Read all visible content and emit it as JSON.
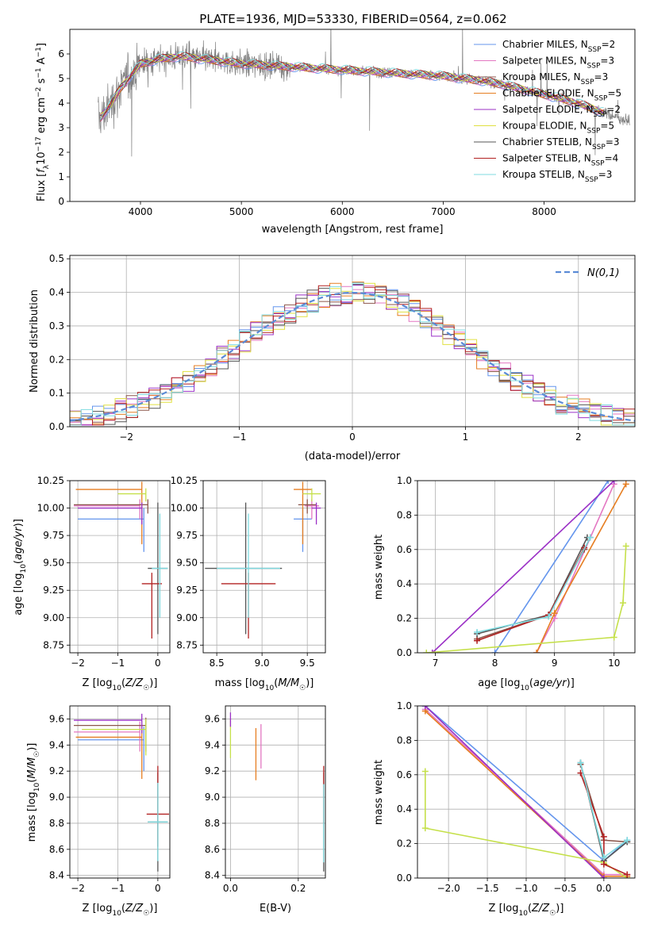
{
  "figure_title": "PLATE=1936, MJD=53330, FIBERID=0564, z=0.062",
  "series_styles": [
    {
      "name": "Chabrier MILES",
      "nssp": "2",
      "color": "#6495ed"
    },
    {
      "name": "Salpeter MILES",
      "nssp": "3",
      "color": "#e377c2"
    },
    {
      "name": "Kroupa MILES",
      "nssp": "3",
      "color": "#8c564b"
    },
    {
      "name": "Chabrier ELODIE",
      "nssp": "5",
      "color": "#e67e22"
    },
    {
      "name": "Salpeter ELODIE",
      "nssp": "2",
      "color": "#9b30c6"
    },
    {
      "name": "Kroupa ELODIE",
      "nssp": "5",
      "color": "#e0e040"
    },
    {
      "name": "Chabrier STELIB",
      "nssp": "3",
      "color": "#555555"
    },
    {
      "name": "Salpeter STELIB",
      "nssp": "4",
      "color": "#b22222"
    },
    {
      "name": "Kroupa STELIB",
      "nssp": "3",
      "color": "#7fdbe0"
    }
  ],
  "chart_data": [
    {
      "id": "spectrum",
      "type": "line",
      "xlabel": "wavelength [Angstrom, rest frame]",
      "ylabel": "Flux [f_λ10^-17 erg cm^-2 s^-1 A^-1]",
      "xlim": [
        3300,
        8900
      ],
      "ylim": [
        0,
        7
      ],
      "xticks": [
        4000,
        5000,
        6000,
        7000,
        8000
      ],
      "yticks": [
        0,
        1,
        2,
        3,
        4,
        5,
        6
      ],
      "legend_position": "upper-right",
      "data_color": "#808080",
      "continuum_x": [
        3600,
        3700,
        3800,
        3900,
        4000,
        4200,
        4400,
        4600,
        4800,
        5000,
        5200,
        5400,
        5600,
        5800,
        6000,
        6200,
        6400,
        6600,
        6800,
        7000,
        7200,
        7400,
        7600,
        7800,
        8000,
        8200,
        8400,
        8600,
        8800
      ],
      "continuum_y": [
        3.4,
        3.9,
        4.6,
        5.1,
        5.6,
        5.8,
        5.9,
        5.8,
        5.7,
        5.6,
        5.55,
        5.5,
        5.45,
        5.4,
        5.35,
        5.3,
        5.25,
        5.2,
        5.15,
        5.1,
        5.0,
        4.9,
        4.75,
        4.55,
        4.35,
        4.15,
        3.9,
        3.6,
        3.3
      ]
    },
    {
      "id": "residuals",
      "type": "histogram",
      "xlabel": "(data-model)/error",
      "ylabel": "Normed distribution",
      "xlim": [
        -2.5,
        2.5
      ],
      "ylim": [
        0,
        0.51
      ],
      "xticks": [
        -2,
        -1,
        0,
        1,
        2
      ],
      "yticks": [
        0.0,
        0.1,
        0.2,
        0.3,
        0.4,
        0.5
      ],
      "grid": true,
      "legend": "N(0,1)",
      "legend_position": "upper-right",
      "bin_width": 0.1
    },
    {
      "id": "age_vs_Z",
      "type": "errorbar",
      "xlabel": "Z [log10(Z/Z☉)]",
      "ylabel": "age  [log10(age/yr)]",
      "xlim": [
        -2.2,
        0.3
      ],
      "ylim": [
        8.68,
        10.25
      ],
      "xticks": [
        -2,
        -1,
        0
      ],
      "yticks": [
        8.75,
        9.0,
        9.25,
        9.5,
        9.75,
        10.0,
        10.25
      ],
      "grid": true,
      "points": [
        {
          "x": -0.35,
          "y": 9.9,
          "xerr": [
            1.65,
            0
          ],
          "yerr": [
            0.3,
            0.1
          ],
          "color": "#6495ed"
        },
        {
          "x": -0.45,
          "y": 10.02,
          "xerr": [
            1.65,
            0
          ],
          "yerr": [
            0.12,
            0.06
          ],
          "color": "#e377c2"
        },
        {
          "x": -0.25,
          "y": 10.03,
          "xerr": [
            1.85,
            0
          ],
          "yerr": [
            0.08,
            0.05
          ],
          "color": "#8c564b"
        },
        {
          "x": -0.4,
          "y": 10.17,
          "xerr": [
            1.65,
            0
          ],
          "yerr": [
            0.5,
            0.07
          ],
          "color": "#e67e22"
        },
        {
          "x": -0.4,
          "y": 10.0,
          "xerr": [
            1.6,
            0
          ],
          "yerr": [
            0.15,
            0.05
          ],
          "color": "#9b30c6"
        },
        {
          "x": -0.3,
          "y": 10.13,
          "xerr": [
            0.7,
            0
          ],
          "yerr": [
            0.07,
            0.05
          ],
          "color": "#c5e04a"
        },
        {
          "x": 0.0,
          "y": 9.45,
          "xerr": [
            0.25,
            0.25
          ],
          "yerr": [
            0.6,
            0.6
          ],
          "color": "#555555"
        },
        {
          "x": -0.15,
          "y": 9.31,
          "xerr": [
            0.25,
            0.25
          ],
          "yerr": [
            0.5,
            0.1
          ],
          "color": "#b22222"
        },
        {
          "x": 0.05,
          "y": 9.45,
          "xerr": [
            0.2,
            0.2
          ],
          "yerr": [
            0.45,
            0.5
          ],
          "color": "#7fdbe0"
        }
      ]
    },
    {
      "id": "age_vs_mass",
      "type": "errorbar",
      "xlabel": "mass [log10(M/M☉)]",
      "ylabel": "",
      "xlim": [
        8.35,
        9.7
      ],
      "ylim": [
        8.68,
        10.25
      ],
      "xticks": [
        8.5,
        9.0,
        9.5
      ],
      "yticks": [
        8.75,
        9.0,
        9.25,
        9.5,
        9.75,
        10.0,
        10.25
      ],
      "grid": true,
      "points": [
        {
          "x": 9.45,
          "y": 9.9,
          "xerr": [
            0.1,
            0.1
          ],
          "yerr": [
            0.3,
            0.1
          ],
          "color": "#6495ed"
        },
        {
          "x": 9.55,
          "y": 10.02,
          "xerr": [
            0.08,
            0.08
          ],
          "yerr": [
            0.12,
            0.06
          ],
          "color": "#e377c2"
        },
        {
          "x": 9.5,
          "y": 10.03,
          "xerr": [
            0.1,
            0.1
          ],
          "yerr": [
            0.08,
            0.05
          ],
          "color": "#8c564b"
        },
        {
          "x": 9.45,
          "y": 10.17,
          "xerr": [
            0.1,
            0.1
          ],
          "yerr": [
            0.5,
            0.07
          ],
          "color": "#e67e22"
        },
        {
          "x": 9.6,
          "y": 10.0,
          "xerr": [
            0.05,
            0.05
          ],
          "yerr": [
            0.15,
            0.05
          ],
          "color": "#9b30c6"
        },
        {
          "x": 9.55,
          "y": 10.13,
          "xerr": [
            0.1,
            0.1
          ],
          "yerr": [
            0.07,
            0.05
          ],
          "color": "#c5e04a"
        },
        {
          "x": 8.82,
          "y": 9.45,
          "xerr": [
            0.45,
            0.4
          ],
          "yerr": [
            0.6,
            0.6
          ],
          "color": "#555555"
        },
        {
          "x": 8.85,
          "y": 9.31,
          "xerr": [
            0.3,
            0.3
          ],
          "yerr": [
            0.5,
            0.1
          ],
          "color": "#b22222"
        },
        {
          "x": 8.85,
          "y": 9.45,
          "xerr": [
            0.35,
            0.35
          ],
          "yerr": [
            0.45,
            0.5
          ],
          "color": "#7fdbe0"
        }
      ]
    },
    {
      "id": "weight_vs_age",
      "type": "line",
      "xlabel": "age  [log10(age/yr)]",
      "ylabel": "mass weight",
      "xlim": [
        6.7,
        10.35
      ],
      "ylim": [
        0.0,
        1.0
      ],
      "xticks": [
        7,
        8,
        9,
        10
      ],
      "yticks": [
        0.0,
        0.2,
        0.4,
        0.6,
        0.8,
        1.0
      ],
      "grid": true,
      "series": [
        {
          "color": "#6495ed",
          "x": [
            8.0,
            9.9
          ],
          "y": [
            0.0,
            1.0
          ]
        },
        {
          "color": "#e377c2",
          "x": [
            8.7,
            9.0,
            10.0
          ],
          "y": [
            0.0,
            0.2,
            0.98
          ]
        },
        {
          "color": "#8c564b",
          "x": [
            7.7,
            8.9,
            9.5,
            9.6
          ],
          "y": [
            0.08,
            0.22,
            0.6,
            0.67
          ]
        },
        {
          "color": "#e67e22",
          "x": [
            8.7,
            9.0,
            10.2
          ],
          "y": [
            0.0,
            0.23,
            0.98
          ]
        },
        {
          "color": "#9b30c6",
          "x": [
            6.95,
            10.0
          ],
          "y": [
            0.0,
            1.0
          ]
        },
        {
          "color": "#c5e04a",
          "x": [
            6.85,
            10.0,
            10.15,
            10.2
          ],
          "y": [
            0.0,
            0.09,
            0.29,
            0.62
          ]
        },
        {
          "color": "#555555",
          "x": [
            7.7,
            8.9,
            9.55
          ],
          "y": [
            0.11,
            0.22,
            0.67
          ]
        },
        {
          "color": "#b22222",
          "x": [
            7.7,
            8.9,
            9.5
          ],
          "y": [
            0.07,
            0.22,
            0.61
          ]
        },
        {
          "color": "#7fdbe0",
          "x": [
            7.7,
            8.9,
            9.6
          ],
          "y": [
            0.12,
            0.21,
            0.67
          ]
        }
      ]
    },
    {
      "id": "mass_vs_Z",
      "type": "errorbar",
      "xlabel": "Z [log10(Z/Z☉)]",
      "ylabel": "mass [log10(M/M☉)]",
      "xlim": [
        -2.2,
        0.3
      ],
      "ylim": [
        8.38,
        9.7
      ],
      "xticks": [
        -2,
        -1,
        0
      ],
      "yticks": [
        8.4,
        8.6,
        8.8,
        9.0,
        9.2,
        9.4,
        9.6
      ],
      "grid": true,
      "points": [
        {
          "x": -0.35,
          "y": 9.44,
          "xerr": [
            1.65,
            0
          ],
          "yerr": [
            0.24,
            0.1
          ],
          "color": "#6495ed"
        },
        {
          "x": -0.45,
          "y": 9.5,
          "xerr": [
            1.65,
            0
          ],
          "yerr": [
            0.15,
            0.08
          ],
          "color": "#e377c2"
        },
        {
          "x": -0.3,
          "y": 9.55,
          "xerr": [
            1.8,
            0
          ],
          "yerr": [
            0.2,
            0.06
          ],
          "color": "#8c564b"
        },
        {
          "x": -0.4,
          "y": 9.46,
          "xerr": [
            1.65,
            0
          ],
          "yerr": [
            0.32,
            0.06
          ],
          "color": "#e67e22"
        },
        {
          "x": -0.4,
          "y": 9.59,
          "xerr": [
            1.7,
            0
          ],
          "yerr": [
            0.1,
            0.05
          ],
          "color": "#9b30c6"
        },
        {
          "x": -0.3,
          "y": 9.52,
          "xerr": [
            1.6,
            0
          ],
          "yerr": [
            0.2,
            0.08
          ],
          "color": "#c5e04a"
        },
        {
          "x": 0.0,
          "y": 8.81,
          "xerr": [
            0.25,
            0.25
          ],
          "yerr": [
            0.38,
            0.38
          ],
          "color": "#555555"
        },
        {
          "x": 0.0,
          "y": 8.87,
          "xerr": [
            0.28,
            0.28
          ],
          "yerr": [
            0.25,
            0.37
          ],
          "color": "#b22222"
        },
        {
          "x": 0.0,
          "y": 8.81,
          "xerr": [
            0.25,
            0.25
          ],
          "yerr": [
            0.3,
            0.3
          ],
          "color": "#7fdbe0"
        }
      ]
    },
    {
      "id": "mass_vs_EBV",
      "type": "errorbar",
      "xlabel": "E(B-V)",
      "ylabel": "",
      "xlim": [
        -0.015,
        0.28
      ],
      "ylim": [
        8.38,
        9.7
      ],
      "xticks": [
        0.0,
        0.2
      ],
      "yticks": [
        8.4,
        8.6,
        8.8,
        9.0,
        9.2,
        9.4,
        9.6
      ],
      "grid": true,
      "points": [
        {
          "x": 0.0,
          "y": 9.5,
          "xerr": [
            0,
            0
          ],
          "yerr": [
            0.2,
            0.1
          ],
          "color": "#c5e04a"
        },
        {
          "x": 0.0,
          "y": 9.59,
          "xerr": [
            0,
            0
          ],
          "yerr": [
            0.05,
            0.06
          ],
          "color": "#9b30c6"
        },
        {
          "x": 0.075,
          "y": 9.35,
          "xerr": [
            0,
            0
          ],
          "yerr": [
            0.22,
            0.18
          ],
          "color": "#e67e22"
        },
        {
          "x": 0.09,
          "y": 9.42,
          "xerr": [
            0,
            0
          ],
          "yerr": [
            0.2,
            0.14
          ],
          "color": "#e377c2"
        },
        {
          "x": 0.275,
          "y": 8.81,
          "xerr": [
            0,
            0
          ],
          "yerr": [
            0.38,
            0.38
          ],
          "color": "#555555"
        },
        {
          "x": 0.275,
          "y": 9.0,
          "xerr": [
            0,
            0
          ],
          "yerr": [
            0.2,
            0.24
          ],
          "color": "#b22222"
        },
        {
          "x": 0.275,
          "y": 8.8,
          "xerr": [
            0,
            0
          ],
          "yerr": [
            0.3,
            0.3
          ],
          "color": "#7fdbe0"
        }
      ]
    },
    {
      "id": "weight_vs_Z",
      "type": "line",
      "xlabel": "Z [log10(Z/Z☉)]",
      "ylabel": "mass weight",
      "xlim": [
        -2.4,
        0.4
      ],
      "ylim": [
        0.0,
        1.0
      ],
      "xticks": [
        -2.0,
        -1.5,
        -1.0,
        -0.5,
        0.0
      ],
      "yticks": [
        0.0,
        0.2,
        0.4,
        0.6,
        0.8,
        1.0
      ],
      "grid": true,
      "series": [
        {
          "color": "#6495ed",
          "x": [
            -2.3,
            0.0,
            0.3
          ],
          "y": [
            1.0,
            0.1,
            0.22
          ]
        },
        {
          "color": "#e377c2",
          "x": [
            -2.3,
            0.0,
            0.3
          ],
          "y": [
            0.98,
            0.02,
            0.02
          ]
        },
        {
          "color": "#8c564b",
          "x": [
            -0.3,
            0.0,
            0.3
          ],
          "y": [
            0.66,
            0.22,
            0.21
          ]
        },
        {
          "color": "#e67e22",
          "x": [
            -2.3,
            0.0,
            0.3
          ],
          "y": [
            0.97,
            0.01,
            0.01
          ]
        },
        {
          "color": "#9b30c6",
          "x": [
            -2.3,
            0.0
          ],
          "y": [
            1.0,
            0.0
          ]
        },
        {
          "color": "#c5e04a",
          "x": [
            -2.3,
            -2.3,
            0.0,
            0.3
          ],
          "y": [
            0.62,
            0.29,
            0.09,
            0.0
          ]
        },
        {
          "color": "#555555",
          "x": [
            -0.3,
            0.0,
            0.3
          ],
          "y": [
            0.67,
            0.1,
            0.21
          ]
        },
        {
          "color": "#b22222",
          "x": [
            -0.3,
            0.0,
            0.0,
            0.3
          ],
          "y": [
            0.61,
            0.24,
            0.08,
            0.02
          ]
        },
        {
          "color": "#7fdbe0",
          "x": [
            -0.3,
            0.0,
            0.3
          ],
          "y": [
            0.67,
            0.12,
            0.22
          ]
        }
      ]
    }
  ]
}
